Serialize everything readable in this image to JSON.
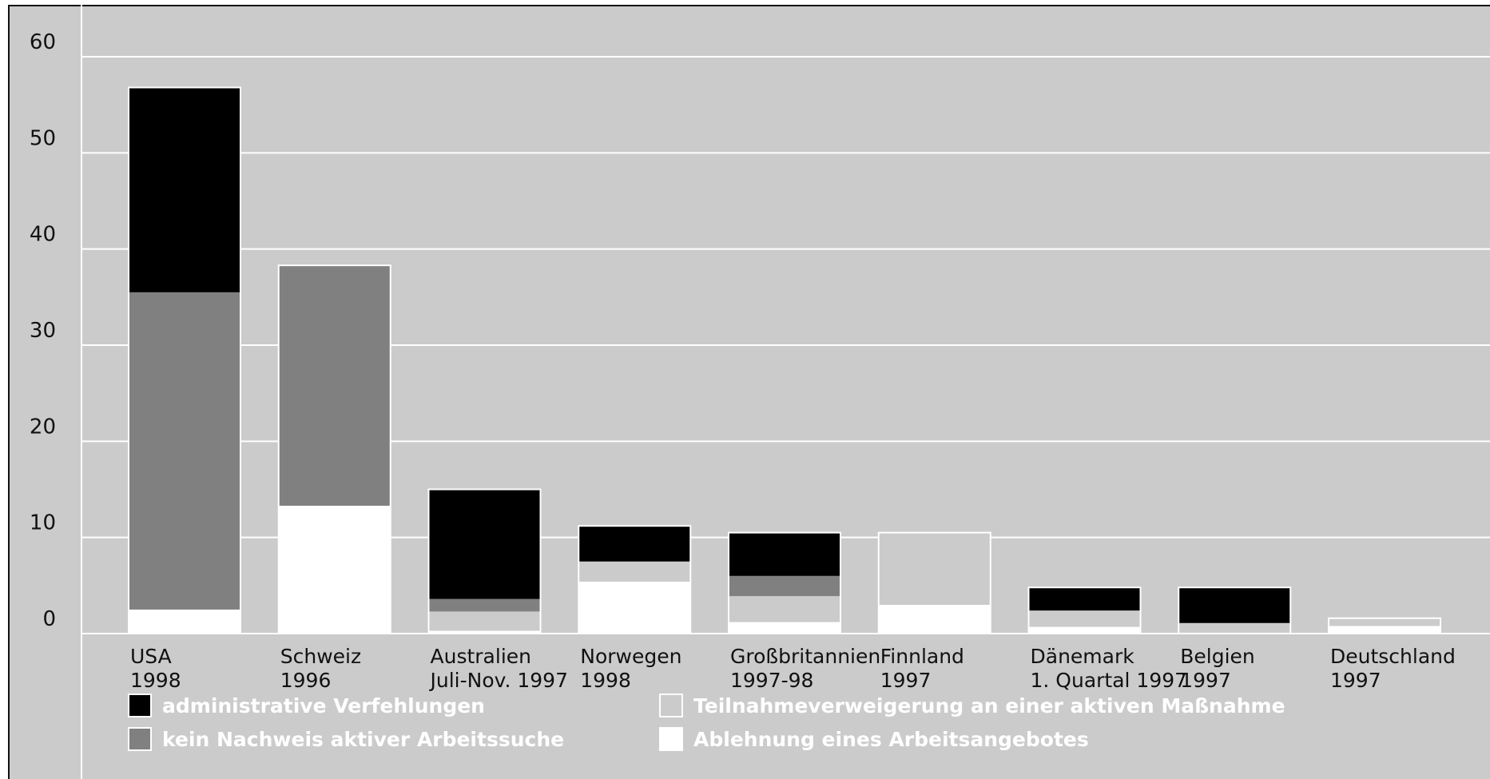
{
  "chart_data": {
    "type": "bar",
    "stacked": true,
    "ylim": [
      0,
      60
    ],
    "yticks": [
      "0",
      "10",
      "20",
      "30",
      "40",
      "50",
      "60"
    ],
    "categories": [
      [
        "USA",
        "1998"
      ],
      [
        "Schweiz",
        "1996"
      ],
      [
        "Australien",
        "Juli-Nov. 1997"
      ],
      [
        "Norwegen",
        "1998"
      ],
      [
        "Großbritannien",
        "1997-98"
      ],
      [
        "Finnland",
        "1997"
      ],
      [
        "Dänemark",
        "1. Quartal 1997"
      ],
      [
        "Belgien",
        "1997"
      ],
      [
        "Deutschland",
        "1997"
      ]
    ],
    "series": [
      {
        "name": "Ablehnung eines Arbeitsangebotes",
        "color": "#ffffff",
        "values": [
          2.5,
          13.3,
          0.3,
          5.4,
          1.2,
          3.0,
          0.7,
          0.1,
          0.8
        ]
      },
      {
        "name": "Teilnahmeverweigerung an einer aktiven Maßnahme",
        "color": "#cbcbcb",
        "values": [
          0,
          0,
          2.0,
          2.1,
          2.7,
          7.5,
          1.7,
          1.0,
          0.8
        ]
      },
      {
        "name": "kein Nachweis aktiver Arbeitssuche",
        "color": "#808080",
        "values": [
          33.0,
          25.0,
          1.3,
          0,
          2.1,
          0,
          0,
          0,
          0
        ]
      },
      {
        "name": "administrative Verfehlungen",
        "color": "#000000",
        "values": [
          21.3,
          0,
          11.4,
          3.7,
          4.5,
          0,
          2.4,
          3.7,
          0
        ]
      }
    ],
    "legend": [
      {
        "label": "administrative Verfehlungen",
        "color": "#000000"
      },
      {
        "label": "kein Nachweis aktiver Arbeitssuche",
        "color": "#808080"
      },
      {
        "label": "Teilnahmeverweigerung an einer aktiven Maßnahme",
        "color": "#cbcbcb"
      },
      {
        "label": "Ablehnung eines Arbeitsangebotes",
        "color": "#ffffff"
      }
    ],
    "grid": true,
    "legend_position": "bottom"
  }
}
